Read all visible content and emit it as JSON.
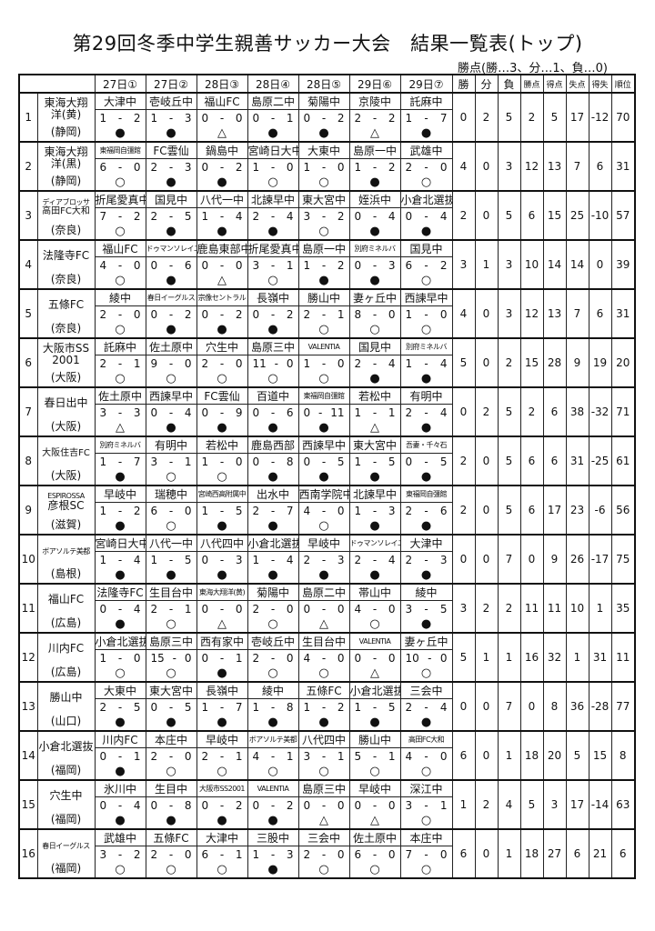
{
  "title": "第29回冬季中学生親善サッカー大会　結果一覧表(トップ)",
  "legend": "勝点(勝…3、分…1、負…0)",
  "header": {
    "rounds": [
      "27日①",
      "27日②",
      "28日③",
      "28日④",
      "28日⑤",
      "29日⑥",
      "29日⑦"
    ],
    "stats": [
      "勝",
      "分",
      "負",
      "勝点",
      "得点",
      "失点",
      "得失",
      "順位"
    ]
  },
  "result_symbols": {
    "win": "○",
    "loss": "●",
    "draw": "△"
  },
  "rows": [
    {
      "no": "1",
      "name": [
        "東海大翔",
        "洋(黄)"
      ],
      "pref": "(静岡)",
      "matches": [
        [
          "大津中",
          "1",
          "2",
          "●"
        ],
        [
          "壱岐丘中",
          "1",
          "3",
          "●"
        ],
        [
          "福山FC",
          "0",
          "0",
          "△"
        ],
        [
          "島原二中",
          "0",
          "1",
          "●"
        ],
        [
          "菊陽中",
          "0",
          "2",
          "●"
        ],
        [
          "京陵中",
          "2",
          "2",
          "△"
        ],
        [
          "託麻中",
          "1",
          "7",
          "●"
        ]
      ],
      "stats": [
        "0",
        "2",
        "5",
        "2",
        "5",
        "17",
        "-12",
        "70"
      ]
    },
    {
      "no": "2",
      "name": [
        "東海大翔",
        "洋(黒)"
      ],
      "pref": "(静岡)",
      "matches": [
        [
          "東福岡自彊館",
          "6",
          "0",
          "○"
        ],
        [
          "FC雲仙",
          "2",
          "3",
          "●"
        ],
        [
          "鍋島中",
          "0",
          "2",
          "●"
        ],
        [
          "宮崎日大中",
          "1",
          "0",
          "○"
        ],
        [
          "大東中",
          "1",
          "0",
          "○"
        ],
        [
          "島原一中",
          "1",
          "2",
          "●"
        ],
        [
          "武雄中",
          "2",
          "0",
          "○"
        ]
      ],
      "stats": [
        "4",
        "0",
        "3",
        "12",
        "13",
        "7",
        "6",
        "31"
      ]
    },
    {
      "no": "3",
      "name": [
        "ディアブロッサ",
        "高田FC大和"
      ],
      "pref": "(奈良)",
      "matches": [
        [
          "折尾愛真中",
          "7",
          "2",
          "○"
        ],
        [
          "国見中",
          "2",
          "5",
          "●"
        ],
        [
          "八代一中",
          "1",
          "4",
          "●"
        ],
        [
          "北諫早中",
          "2",
          "4",
          "●"
        ],
        [
          "東大宮中",
          "3",
          "2",
          "○"
        ],
        [
          "姪浜中",
          "0",
          "4",
          "●"
        ],
        [
          "小倉北選抜",
          "0",
          "4",
          "●"
        ]
      ],
      "stats": [
        "2",
        "0",
        "5",
        "6",
        "15",
        "25",
        "-10",
        "57"
      ]
    },
    {
      "no": "4",
      "name": [
        "法隆寺FC"
      ],
      "pref": "(奈良)",
      "matches": [
        [
          "福山FC",
          "4",
          "0",
          "○"
        ],
        [
          "ドゥマンソレイユ",
          "0",
          "6",
          "●"
        ],
        [
          "鹿島東部中",
          "0",
          "0",
          "△"
        ],
        [
          "折尾愛真中",
          "3",
          "1",
          "○"
        ],
        [
          "島原一中",
          "1",
          "2",
          "●"
        ],
        [
          "別府ミネルバ",
          "0",
          "3",
          "●"
        ],
        [
          "国見中",
          "6",
          "2",
          "○"
        ]
      ],
      "stats": [
        "3",
        "1",
        "3",
        "10",
        "14",
        "14",
        "0",
        "39"
      ]
    },
    {
      "no": "5",
      "name": [
        "五條FC"
      ],
      "pref": "(奈良)",
      "matches": [
        [
          "綾中",
          "2",
          "0",
          "○"
        ],
        [
          "春日イーグルス",
          "0",
          "2",
          "●"
        ],
        [
          "宗像セントラル",
          "0",
          "2",
          "●"
        ],
        [
          "長嶺中",
          "0",
          "2",
          "●"
        ],
        [
          "勝山中",
          "2",
          "1",
          "○"
        ],
        [
          "妻ヶ丘中",
          "8",
          "0",
          "○"
        ],
        [
          "西諫早中",
          "1",
          "0",
          "○"
        ]
      ],
      "stats": [
        "4",
        "0",
        "3",
        "12",
        "13",
        "7",
        "6",
        "31"
      ]
    },
    {
      "no": "6",
      "name": [
        "大阪市SS",
        "2001"
      ],
      "pref": "(大阪)",
      "matches": [
        [
          "託麻中",
          "2",
          "1",
          "○"
        ],
        [
          "佐土原中",
          "9",
          "0",
          "○"
        ],
        [
          "穴生中",
          "2",
          "0",
          "○"
        ],
        [
          "島原三中",
          "11",
          "0",
          "○"
        ],
        [
          "VALENTIA",
          "1",
          "0",
          "○"
        ],
        [
          "国見中",
          "2",
          "4",
          "●"
        ],
        [
          "別府ミネルバ",
          "1",
          "4",
          "●"
        ]
      ],
      "stats": [
        "5",
        "0",
        "2",
        "15",
        "28",
        "9",
        "19",
        "20"
      ]
    },
    {
      "no": "7",
      "name": [
        "春日出中"
      ],
      "pref": "(大阪)",
      "matches": [
        [
          "佐土原中",
          "3",
          "3",
          "△"
        ],
        [
          "西諫早中",
          "0",
          "4",
          "●"
        ],
        [
          "FC雲仙",
          "0",
          "9",
          "●"
        ],
        [
          "百道中",
          "0",
          "6",
          "●"
        ],
        [
          "東福岡自彊館",
          "0",
          "11",
          "●"
        ],
        [
          "若松中",
          "1",
          "1",
          "△"
        ],
        [
          "有明中",
          "2",
          "4",
          "●"
        ]
      ],
      "stats": [
        "0",
        "2",
        "5",
        "2",
        "6",
        "38",
        "-32",
        "71"
      ]
    },
    {
      "no": "8",
      "name": [
        "大阪住吉FC"
      ],
      "pref": "(大阪)",
      "matches": [
        [
          "別府ミネルバ",
          "1",
          "7",
          "●"
        ],
        [
          "有明中",
          "3",
          "1",
          "○"
        ],
        [
          "若松中",
          "1",
          "0",
          "○"
        ],
        [
          "鹿島西部",
          "0",
          "8",
          "●"
        ],
        [
          "西諫早中",
          "0",
          "5",
          "●"
        ],
        [
          "東大宮中",
          "1",
          "5",
          "●"
        ],
        [
          "吾妻・千々石",
          "0",
          "5",
          "●"
        ]
      ],
      "stats": [
        "2",
        "0",
        "5",
        "6",
        "6",
        "31",
        "-25",
        "61"
      ]
    },
    {
      "no": "9",
      "name": [
        "ESPIROSSA",
        "彦根SC"
      ],
      "pref": "(滋賀)",
      "matches": [
        [
          "早岐中",
          "1",
          "2",
          "●"
        ],
        [
          "瑞穂中",
          "6",
          "0",
          "○"
        ],
        [
          "宮崎西高附属中",
          "1",
          "5",
          "●"
        ],
        [
          "出水中",
          "2",
          "7",
          "●"
        ],
        [
          "西南学院中",
          "4",
          "0",
          "○"
        ],
        [
          "北諫早中",
          "1",
          "3",
          "●"
        ],
        [
          "東福岡自彊館",
          "2",
          "6",
          "●"
        ]
      ],
      "stats": [
        "2",
        "0",
        "5",
        "6",
        "17",
        "23",
        "-6",
        "56"
      ]
    },
    {
      "no": "10",
      "name": [
        "ボアソルテ美都"
      ],
      "pref": "(島根)",
      "matches": [
        [
          "宮崎日大中",
          "1",
          "4",
          "●"
        ],
        [
          "八代一中",
          "1",
          "5",
          "●"
        ],
        [
          "八代四中",
          "0",
          "3",
          "●"
        ],
        [
          "小倉北選抜",
          "1",
          "4",
          "●"
        ],
        [
          "早岐中",
          "2",
          "3",
          "●"
        ],
        [
          "ドゥマンソレイユ",
          "2",
          "4",
          "●"
        ],
        [
          "大津中",
          "2",
          "3",
          "●"
        ]
      ],
      "stats": [
        "0",
        "0",
        "7",
        "0",
        "9",
        "26",
        "-17",
        "75"
      ]
    },
    {
      "no": "11",
      "name": [
        "福山FC"
      ],
      "pref": "(広島)",
      "matches": [
        [
          "法隆寺FC",
          "0",
          "4",
          "●"
        ],
        [
          "生目台中",
          "2",
          "1",
          "○"
        ],
        [
          "東海大翔洋(黄)",
          "0",
          "0",
          "△"
        ],
        [
          "菊陽中",
          "2",
          "0",
          "○"
        ],
        [
          "島原二中",
          "0",
          "0",
          "△"
        ],
        [
          "帯山中",
          "4",
          "0",
          "○"
        ],
        [
          "綾中",
          "3",
          "5",
          "●"
        ]
      ],
      "stats": [
        "3",
        "2",
        "2",
        "11",
        "11",
        "10",
        "1",
        "35"
      ]
    },
    {
      "no": "12",
      "name": [
        "川内FC"
      ],
      "pref": "(広島)",
      "matches": [
        [
          "小倉北選抜",
          "1",
          "0",
          "○"
        ],
        [
          "島原三中",
          "15",
          "0",
          "○"
        ],
        [
          "西有家中",
          "0",
          "1",
          "●"
        ],
        [
          "壱岐丘中",
          "2",
          "0",
          "○"
        ],
        [
          "生目台中",
          "4",
          "0",
          "○"
        ],
        [
          "VALENTIA",
          "0",
          "0",
          "△"
        ],
        [
          "妻ヶ丘中",
          "10",
          "0",
          "○"
        ]
      ],
      "stats": [
        "5",
        "1",
        "1",
        "16",
        "32",
        "1",
        "31",
        "11"
      ]
    },
    {
      "no": "13",
      "name": [
        "勝山中"
      ],
      "pref": "(山口)",
      "matches": [
        [
          "大東中",
          "2",
          "5",
          "●"
        ],
        [
          "東大宮中",
          "0",
          "5",
          "●"
        ],
        [
          "長嶺中",
          "1",
          "7",
          "●"
        ],
        [
          "綾中",
          "1",
          "8",
          "●"
        ],
        [
          "五條FC",
          "1",
          "2",
          "●"
        ],
        [
          "小倉北選抜",
          "1",
          "5",
          "●"
        ],
        [
          "三会中",
          "2",
          "4",
          "●"
        ]
      ],
      "stats": [
        "0",
        "0",
        "7",
        "0",
        "8",
        "36",
        "-28",
        "77"
      ]
    },
    {
      "no": "14",
      "name": [
        "小倉北選抜"
      ],
      "pref": "(福岡)",
      "matches": [
        [
          "川内FC",
          "0",
          "1",
          "●"
        ],
        [
          "本庄中",
          "2",
          "0",
          "○"
        ],
        [
          "早岐中",
          "2",
          "1",
          "○"
        ],
        [
          "ボアソルテ美都",
          "4",
          "1",
          "○"
        ],
        [
          "八代四中",
          "3",
          "1",
          "○"
        ],
        [
          "勝山中",
          "5",
          "1",
          "○"
        ],
        [
          "高田FC大和",
          "4",
          "0",
          "○"
        ]
      ],
      "stats": [
        "6",
        "0",
        "1",
        "18",
        "20",
        "5",
        "15",
        "8"
      ]
    },
    {
      "no": "15",
      "name": [
        "穴生中"
      ],
      "pref": "(福岡)",
      "matches": [
        [
          "氷川中",
          "0",
          "4",
          "●"
        ],
        [
          "生目中",
          "0",
          "8",
          "●"
        ],
        [
          "大阪市SS2001",
          "0",
          "2",
          "●"
        ],
        [
          "VALENTIA",
          "0",
          "2",
          "●"
        ],
        [
          "島原三中",
          "0",
          "0",
          "△"
        ],
        [
          "早岐中",
          "0",
          "0",
          "△"
        ],
        [
          "深江中",
          "3",
          "1",
          "○"
        ]
      ],
      "stats": [
        "1",
        "2",
        "4",
        "5",
        "3",
        "17",
        "-14",
        "63"
      ]
    },
    {
      "no": "16",
      "name": [
        "春日イーグルス"
      ],
      "pref": "(福岡)",
      "matches": [
        [
          "武雄中",
          "3",
          "2",
          "○"
        ],
        [
          "五條FC",
          "2",
          "0",
          "○"
        ],
        [
          "大津中",
          "6",
          "1",
          "○"
        ],
        [
          "三股中",
          "1",
          "3",
          "●"
        ],
        [
          "三会中",
          "2",
          "0",
          "○"
        ],
        [
          "佐土原中",
          "6",
          "0",
          "○"
        ],
        [
          "本庄中",
          "7",
          "0",
          "○"
        ]
      ],
      "stats": [
        "6",
        "0",
        "1",
        "18",
        "27",
        "6",
        "21",
        "6"
      ]
    }
  ]
}
